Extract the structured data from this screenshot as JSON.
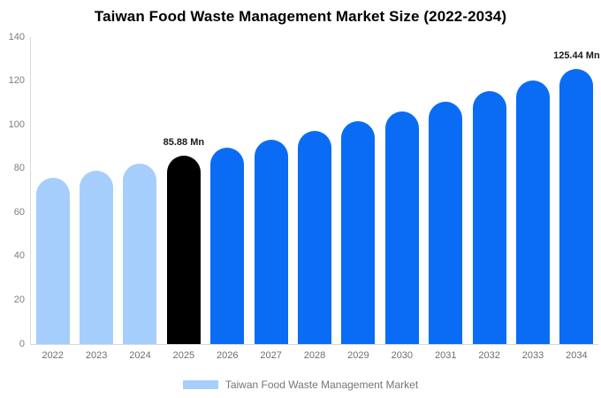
{
  "chart_data": {
    "type": "bar",
    "title": "Taiwan Food Waste Management Market Size (2022-2034)",
    "categories": [
      "2022",
      "2023",
      "2024",
      "2025",
      "2026",
      "2027",
      "2028",
      "2029",
      "2030",
      "2031",
      "2032",
      "2033",
      "2034"
    ],
    "values": [
      75.7,
      78.9,
      82.3,
      85.88,
      89.6,
      93.4,
      97.4,
      101.6,
      106.0,
      110.6,
      115.3,
      120.3,
      125.44
    ],
    "value_unit": "Mn",
    "ylim": [
      0,
      140
    ],
    "yticks": [
      0,
      20,
      40,
      60,
      80,
      100,
      120,
      140
    ],
    "grid": false,
    "legend_position": "bottom",
    "bar_colors": [
      "#a6cefc",
      "#a6cefc",
      "#a6cefc",
      "#000000",
      "#0a6cf5",
      "#0a6cf5",
      "#0a6cf5",
      "#0a6cf5",
      "#0a6cf5",
      "#0a6cf5",
      "#0a6cf5",
      "#0a6cf5",
      "#0a6cf5"
    ],
    "annotations": [
      {
        "category": "2025",
        "text": "85.88 Mn"
      },
      {
        "category": "2034",
        "text": "125.44 Mn"
      }
    ],
    "legend": [
      {
        "label": "Taiwan Food Waste Management Market",
        "swatch_color": "#a6cefc"
      }
    ],
    "colors": {
      "historical_bar": "#a6cefc",
      "base_year_bar": "#000000",
      "forecast_bar": "#0a6cf5",
      "axis_line": "#d9d9d9",
      "tick_label": "#7d7d7d",
      "annotation_text": "#1a1a1a",
      "title_text": "#000000",
      "legend_text": "#757575",
      "background": "#ffffff"
    }
  }
}
